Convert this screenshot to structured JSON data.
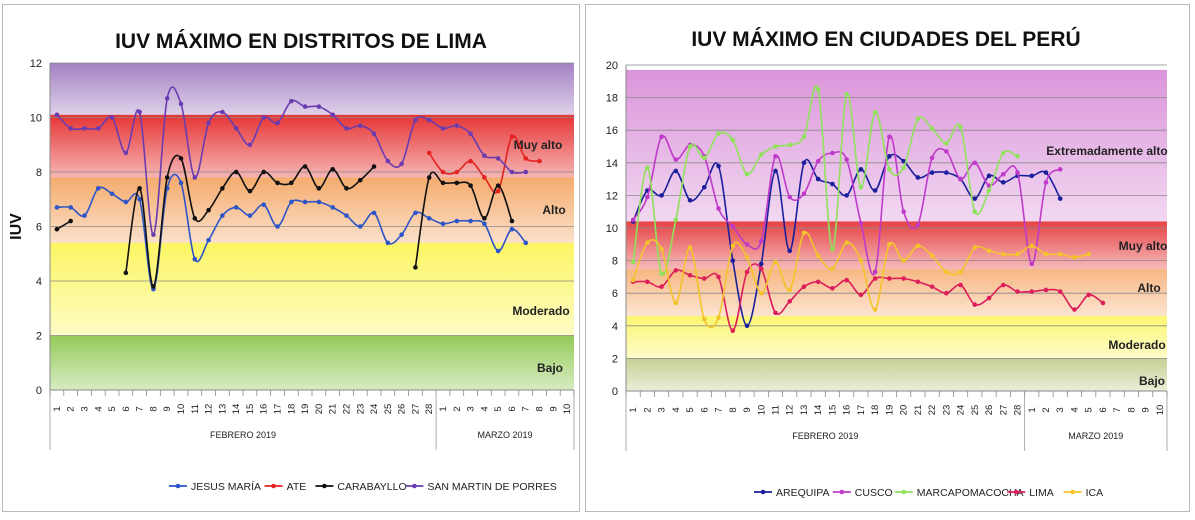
{
  "chart_data": [
    {
      "type": "line",
      "title": "IUV MÁXIMO EN DISTRITOS DE LIMA",
      "ylabel": "IUV",
      "ylim": [
        0,
        12
      ],
      "yticks": [
        0,
        2,
        4,
        6,
        8,
        10,
        12
      ],
      "categories": [
        "1",
        "2",
        "3",
        "4",
        "5",
        "6",
        "7",
        "8",
        "9",
        "10",
        "11",
        "12",
        "13",
        "14",
        "15",
        "16",
        "17",
        "18",
        "19",
        "20",
        "21",
        "22",
        "23",
        "24",
        "25",
        "26",
        "27",
        "28",
        "1",
        "2",
        "3",
        "4",
        "5",
        "6",
        "7",
        "8",
        "9",
        "10"
      ],
      "groups": [
        {
          "label": "FEBRERO 2019",
          "count": 28
        },
        {
          "label": "MARZO 2019",
          "count": 10
        }
      ],
      "bands": [
        {
          "label": "Bajo",
          "from": 0,
          "to": 2,
          "color": "#8fc850"
        },
        {
          "label": "Moderado",
          "from": 2,
          "to": 5.4,
          "color": "#fbf55a"
        },
        {
          "label": "Alto",
          "from": 5.4,
          "to": 7.8,
          "color": "#f4a765"
        },
        {
          "label": "Muy alto",
          "from": 7.8,
          "to": 10.1,
          "color": "#e52a2a"
        },
        {
          "label": "",
          "from": 10.1,
          "to": 12,
          "color": "#9f7ac0"
        }
      ],
      "grid": true,
      "legend_position": "bottom",
      "series": [
        {
          "name": "JESUS MARÍA",
          "color": "#2d55c8",
          "values": [
            6.7,
            6.7,
            6.4,
            7.4,
            7.2,
            6.9,
            7.0,
            3.7,
            7.4,
            7.6,
            4.8,
            5.5,
            6.4,
            6.7,
            6.4,
            6.8,
            6.0,
            6.9,
            6.9,
            6.9,
            6.7,
            6.4,
            6.0,
            6.5,
            5.4,
            5.7,
            6.5,
            6.3,
            6.1,
            6.2,
            6.2,
            6.1,
            5.1,
            5.9,
            5.4,
            null,
            null,
            null
          ]
        },
        {
          "name": "ATE",
          "color": "#e3231f",
          "values": [
            null,
            null,
            null,
            null,
            null,
            null,
            null,
            null,
            null,
            null,
            null,
            null,
            null,
            null,
            null,
            null,
            null,
            null,
            null,
            null,
            null,
            null,
            null,
            null,
            null,
            null,
            null,
            8.7,
            8.0,
            8.0,
            8.4,
            7.8,
            7.3,
            9.3,
            8.5,
            8.4,
            null,
            null
          ]
        },
        {
          "name": "CARABAYLLO",
          "color": "#111111",
          "values": [
            5.9,
            6.2,
            null,
            null,
            null,
            4.3,
            7.4,
            3.8,
            7.8,
            8.5,
            6.3,
            6.6,
            7.4,
            8.0,
            7.3,
            8.0,
            7.6,
            7.6,
            8.2,
            7.4,
            8.1,
            7.4,
            7.7,
            8.2,
            null,
            null,
            4.5,
            7.8,
            7.6,
            7.6,
            7.5,
            6.3,
            7.5,
            6.2,
            null,
            null,
            null,
            null
          ]
        },
        {
          "name": "SAN MARTIN DE PORRES",
          "color": "#6a3cb0",
          "values": [
            10.1,
            9.6,
            9.6,
            9.6,
            10.0,
            8.7,
            10.2,
            5.7,
            10.7,
            10.5,
            7.8,
            9.8,
            10.2,
            9.6,
            9.0,
            10.0,
            9.8,
            10.6,
            10.4,
            10.4,
            10.1,
            9.6,
            9.7,
            9.4,
            8.4,
            8.3,
            9.9,
            9.9,
            9.6,
            9.7,
            9.4,
            8.6,
            8.5,
            8.0,
            8.0,
            null,
            null,
            null
          ]
        }
      ],
      "band_labels": [
        "Muy alto",
        "Alto",
        "Moderado",
        "Bajo"
      ]
    },
    {
      "type": "line",
      "title": "IUV MÁXIMO EN CIUDADES DEL PERÚ",
      "ylim": [
        0,
        20
      ],
      "yticks": [
        0,
        2,
        4,
        6,
        8,
        10,
        12,
        14,
        16,
        18,
        20
      ],
      "categories": [
        "1",
        "2",
        "3",
        "4",
        "5",
        "6",
        "7",
        "8",
        "9",
        "10",
        "11",
        "12",
        "13",
        "14",
        "15",
        "16",
        "17",
        "18",
        "19",
        "20",
        "21",
        "22",
        "23",
        "24",
        "25",
        "26",
        "27",
        "28",
        "1",
        "2",
        "3",
        "4",
        "5",
        "6",
        "7",
        "8",
        "9",
        "10"
      ],
      "groups": [
        {
          "label": "FEBRERO 2019",
          "count": 28
        },
        {
          "label": "MARZO 2019",
          "count": 10
        }
      ],
      "bands": [
        {
          "label": "Bajo",
          "from": 0,
          "to": 2,
          "color": "#c6cd90"
        },
        {
          "label": "Moderado",
          "from": 2,
          "to": 4.6,
          "color": "#fbf66a"
        },
        {
          "label": "Alto",
          "from": 4.6,
          "to": 7.5,
          "color": "#f6b37c"
        },
        {
          "label": "Muy alto",
          "from": 7.5,
          "to": 10.4,
          "color": "#e4383a"
        },
        {
          "label": "Extremadamente alto",
          "from": 10.4,
          "to": 19.7,
          "color": "#d98fd8"
        }
      ],
      "grid": true,
      "legend_position": "bottom",
      "series": [
        {
          "name": "AREQUIPA",
          "color": "#1b1f9c",
          "values": [
            10.4,
            12.3,
            12.0,
            13.5,
            11.7,
            12.5,
            13.8,
            8.0,
            4.0,
            7.8,
            13.5,
            8.6,
            14.0,
            13.0,
            12.7,
            12.0,
            13.6,
            12.3,
            14.4,
            14.1,
            13.1,
            13.4,
            13.4,
            13.0,
            11.8,
            13.2,
            12.8,
            13.2,
            13.2,
            13.4,
            11.8,
            null,
            null,
            null,
            null,
            null,
            null,
            null
          ]
        },
        {
          "name": "CUSCO",
          "color": "#c03aca",
          "values": [
            10.5,
            11.9,
            15.6,
            14.2,
            15.1,
            14.4,
            11.2,
            10.1,
            9.0,
            9.2,
            14.4,
            11.9,
            12.1,
            14.1,
            14.6,
            14.2,
            10.3,
            7.3,
            15.6,
            11.0,
            10.2,
            14.3,
            14.7,
            13.0,
            14.0,
            12.6,
            13.3,
            13.4,
            7.8,
            12.8,
            13.6,
            null,
            null,
            null,
            null,
            null,
            null,
            null
          ]
        },
        {
          "name": "MARCAPOMACOCHA",
          "color": "#8fe35a",
          "values": [
            7.9,
            13.7,
            7.2,
            10.5,
            15.0,
            14.3,
            15.8,
            15.4,
            13.3,
            14.5,
            15.0,
            15.1,
            15.6,
            18.5,
            8.7,
            18.2,
            12.5,
            17.1,
            13.6,
            13.7,
            16.7,
            16.1,
            15.2,
            16.2,
            11.0,
            12.3,
            14.6,
            14.4,
            null,
            null,
            null,
            null,
            null,
            null,
            null,
            null,
            null,
            null
          ]
        },
        {
          "name": "LIMA",
          "color": "#dc1e5a",
          "values": [
            6.7,
            6.7,
            6.4,
            7.4,
            7.1,
            6.9,
            7.0,
            3.7,
            7.3,
            7.5,
            4.8,
            5.5,
            6.4,
            6.7,
            6.3,
            6.8,
            5.9,
            6.9,
            6.9,
            6.9,
            6.7,
            6.4,
            6.0,
            6.5,
            5.3,
            5.7,
            6.5,
            6.1,
            6.1,
            6.2,
            6.1,
            5.0,
            5.9,
            5.4,
            null,
            null,
            null,
            null
          ]
        },
        {
          "name": "ICA",
          "color": "#f4c32c",
          "values": [
            6.8,
            9.1,
            8.7,
            5.4,
            8.8,
            4.4,
            4.5,
            8.9,
            8.2,
            6.0,
            7.9,
            6.2,
            9.7,
            8.3,
            7.5,
            9.1,
            8.0,
            5.0,
            9.0,
            8.0,
            8.9,
            8.3,
            7.3,
            7.3,
            8.8,
            8.6,
            8.4,
            8.4,
            8.9,
            8.4,
            8.4,
            8.2,
            8.4,
            null,
            null,
            null,
            null,
            null
          ]
        }
      ],
      "band_labels": [
        "Extremadamente alto",
        "Muy alto",
        "Alto",
        "Moderado",
        "Bajo"
      ]
    }
  ]
}
